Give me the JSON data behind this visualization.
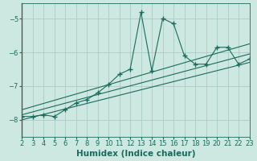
{
  "title": "",
  "xlabel": "Humidex (Indice chaleur)",
  "bg_color": "#cce8e0",
  "plot_bg_color": "#cce8e0",
  "outer_bg_color": "#cce8e0",
  "line_color": "#1a6b5e",
  "grid_color": "#aaccc4",
  "xlim": [
    2,
    23
  ],
  "ylim": [
    -8.5,
    -4.55
  ],
  "xticks": [
    2,
    3,
    4,
    5,
    6,
    7,
    8,
    9,
    10,
    11,
    12,
    13,
    14,
    15,
    16,
    17,
    18,
    19,
    20,
    21,
    22,
    23
  ],
  "yticks": [
    -8,
    -7,
    -6,
    -5
  ],
  "scatter_x": [
    2,
    3,
    4,
    5,
    6,
    7,
    8,
    9,
    10,
    11,
    12,
    13,
    14,
    15,
    16,
    17,
    18,
    19,
    20,
    21,
    22,
    23
  ],
  "scatter_y": [
    -7.9,
    -7.9,
    -7.85,
    -7.9,
    -7.7,
    -7.5,
    -7.4,
    -7.2,
    -6.95,
    -6.65,
    -6.5,
    -4.82,
    -6.55,
    -5.0,
    -5.15,
    -6.1,
    -6.35,
    -6.35,
    -5.85,
    -5.85,
    -6.35,
    -6.2
  ],
  "line1_x": [
    2,
    23
  ],
  "line1_y": [
    -8.0,
    -6.3
  ],
  "line2_x": [
    2,
    23
  ],
  "line2_y": [
    -7.85,
    -6.05
  ],
  "line3_x": [
    2,
    23
  ],
  "line3_y": [
    -7.7,
    -5.75
  ],
  "tick_fontsize": 6,
  "label_fontsize": 7.5
}
